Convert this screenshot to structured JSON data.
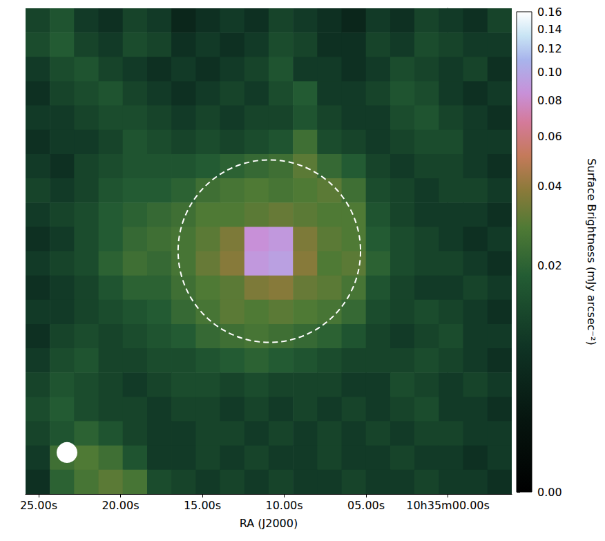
{
  "chart_data": {
    "type": "heatmap",
    "xlabel": "RA (J2000)",
    "xlim": [
      25.8,
      -3.9
    ],
    "xticks": [
      {
        "value": 25,
        "label": "25.00s"
      },
      {
        "value": 20,
        "label": "20.00s"
      },
      {
        "value": 15,
        "label": "15.00s"
      },
      {
        "value": 10,
        "label": "10.00s"
      },
      {
        "value": 5,
        "label": "05.00s"
      },
      {
        "value": 0,
        "label": "10h35m00.00s"
      }
    ],
    "ylim": [
      0,
      20
    ],
    "tick_labels": "x",
    "image": {
      "x": [
        25.06,
        23.57,
        22.09,
        20.6,
        19.12,
        17.63,
        16.15,
        14.66,
        13.18,
        11.69,
        10.21,
        8.72,
        7.24,
        5.75,
        4.27,
        2.78,
        1.3,
        -0.19,
        -1.67,
        -3.16
      ],
      "y": [
        19.5,
        18.5,
        17.5,
        16.5,
        15.5,
        14.5,
        13.5,
        12.5,
        11.5,
        10.5,
        9.5,
        8.5,
        7.5,
        6.5,
        5.5,
        4.5,
        3.5,
        2.5,
        1.5,
        0.5
      ],
      "values": [
        [
          0.012,
          0.016,
          0.01,
          0.008,
          0.012,
          0.01,
          0.006,
          0.008,
          0.01,
          0.008,
          0.012,
          0.01,
          0.008,
          0.006,
          0.01,
          0.008,
          0.012,
          0.01,
          0.008,
          0.012
        ],
        [
          0.014,
          0.018,
          0.012,
          0.01,
          0.014,
          0.012,
          0.008,
          0.01,
          0.008,
          0.01,
          0.014,
          0.012,
          0.008,
          0.008,
          0.012,
          0.01,
          0.014,
          0.012,
          0.01,
          0.01
        ],
        [
          0.01,
          0.014,
          0.016,
          0.012,
          0.01,
          0.008,
          0.01,
          0.008,
          0.01,
          0.012,
          0.016,
          0.01,
          0.01,
          0.008,
          0.01,
          0.014,
          0.012,
          0.01,
          0.012,
          0.008
        ],
        [
          0.008,
          0.012,
          0.014,
          0.016,
          0.012,
          0.01,
          0.008,
          0.01,
          0.012,
          0.01,
          0.014,
          0.018,
          0.01,
          0.01,
          0.012,
          0.016,
          0.014,
          0.01,
          0.008,
          0.01
        ],
        [
          0.01,
          0.01,
          0.012,
          0.014,
          0.014,
          0.012,
          0.01,
          0.012,
          0.01,
          0.012,
          0.012,
          0.016,
          0.012,
          0.01,
          0.01,
          0.014,
          0.016,
          0.012,
          0.01,
          0.008
        ],
        [
          0.008,
          0.01,
          0.01,
          0.012,
          0.016,
          0.014,
          0.012,
          0.014,
          0.012,
          0.014,
          0.016,
          0.024,
          0.014,
          0.012,
          0.01,
          0.012,
          0.014,
          0.014,
          0.01,
          0.01
        ],
        [
          0.01,
          0.008,
          0.012,
          0.014,
          0.016,
          0.016,
          0.016,
          0.018,
          0.02,
          0.022,
          0.024,
          0.03,
          0.022,
          0.018,
          0.012,
          0.01,
          0.012,
          0.012,
          0.01,
          0.008
        ],
        [
          0.012,
          0.01,
          0.012,
          0.016,
          0.018,
          0.018,
          0.02,
          0.024,
          0.026,
          0.028,
          0.026,
          0.028,
          0.03,
          0.024,
          0.014,
          0.012,
          0.01,
          0.012,
          0.012,
          0.01
        ],
        [
          0.01,
          0.012,
          0.014,
          0.018,
          0.02,
          0.022,
          0.024,
          0.028,
          0.028,
          0.03,
          0.032,
          0.03,
          0.028,
          0.028,
          0.016,
          0.012,
          0.01,
          0.01,
          0.01,
          0.008
        ],
        [
          0.008,
          0.01,
          0.014,
          0.018,
          0.022,
          0.024,
          0.026,
          0.03,
          0.036,
          0.085,
          0.09,
          0.036,
          0.03,
          0.028,
          0.018,
          0.014,
          0.012,
          0.01,
          0.008,
          0.01
        ],
        [
          0.01,
          0.012,
          0.014,
          0.02,
          0.024,
          0.022,
          0.026,
          0.032,
          0.038,
          0.09,
          0.095,
          0.038,
          0.028,
          0.03,
          0.02,
          0.014,
          0.012,
          0.012,
          0.01,
          0.008
        ],
        [
          0.008,
          0.01,
          0.012,
          0.016,
          0.02,
          0.02,
          0.024,
          0.028,
          0.03,
          0.036,
          0.038,
          0.032,
          0.03,
          0.026,
          0.016,
          0.012,
          0.01,
          0.01,
          0.012,
          0.01
        ],
        [
          0.01,
          0.01,
          0.012,
          0.014,
          0.016,
          0.018,
          0.022,
          0.026,
          0.03,
          0.028,
          0.03,
          0.028,
          0.026,
          0.022,
          0.014,
          0.012,
          0.014,
          0.012,
          0.01,
          0.008
        ],
        [
          0.008,
          0.012,
          0.014,
          0.012,
          0.014,
          0.016,
          0.018,
          0.022,
          0.024,
          0.026,
          0.024,
          0.022,
          0.02,
          0.016,
          0.012,
          0.01,
          0.012,
          0.014,
          0.01,
          0.01
        ],
        [
          0.01,
          0.014,
          0.016,
          0.012,
          0.012,
          0.014,
          0.014,
          0.016,
          0.018,
          0.02,
          0.018,
          0.016,
          0.014,
          0.012,
          0.012,
          0.012,
          0.014,
          0.012,
          0.01,
          0.008
        ],
        [
          0.012,
          0.016,
          0.014,
          0.012,
          0.01,
          0.012,
          0.014,
          0.014,
          0.012,
          0.014,
          0.012,
          0.012,
          0.012,
          0.01,
          0.01,
          0.014,
          0.012,
          0.01,
          0.012,
          0.01
        ],
        [
          0.014,
          0.018,
          0.014,
          0.012,
          0.012,
          0.01,
          0.012,
          0.012,
          0.01,
          0.012,
          0.01,
          0.012,
          0.01,
          0.012,
          0.01,
          0.012,
          0.014,
          0.01,
          0.01,
          0.008
        ],
        [
          0.012,
          0.016,
          0.02,
          0.016,
          0.012,
          0.01,
          0.01,
          0.012,
          0.012,
          0.01,
          0.012,
          0.01,
          0.012,
          0.01,
          0.012,
          0.01,
          0.012,
          0.012,
          0.01,
          0.01
        ],
        [
          0.01,
          0.024,
          0.028,
          0.024,
          0.016,
          0.01,
          0.01,
          0.012,
          0.01,
          0.012,
          0.01,
          0.01,
          0.012,
          0.01,
          0.01,
          0.012,
          0.01,
          0.01,
          0.008,
          0.01
        ],
        [
          0.008,
          0.02,
          0.026,
          0.03,
          0.026,
          0.014,
          0.012,
          0.01,
          0.012,
          0.01,
          0.012,
          0.01,
          0.01,
          0.012,
          0.01,
          0.01,
          0.012,
          0.01,
          0.01,
          0.008
        ]
      ]
    },
    "colorbar": {
      "label": "Surface Brightness (mJy arcsec⁻²)",
      "range": [
        0,
        0.16
      ],
      "ticks": [
        {
          "value": 0,
          "label": "0.00"
        },
        0.02,
        0.04,
        0.06,
        0.08,
        {
          "value": 0.1,
          "label": "0.10"
        },
        0.12,
        0.14,
        0.16
      ]
    },
    "circle": {
      "x": 10.91,
      "y": 10.0,
      "rx": 5.57,
      "ry": 3.76,
      "color": "#ffffff",
      "line_style": "dashed"
    },
    "beam": {
      "x": 23.27,
      "y": 1.71,
      "rx": 0.63,
      "ry": 0.43,
      "color": "#ffffff"
    }
  }
}
